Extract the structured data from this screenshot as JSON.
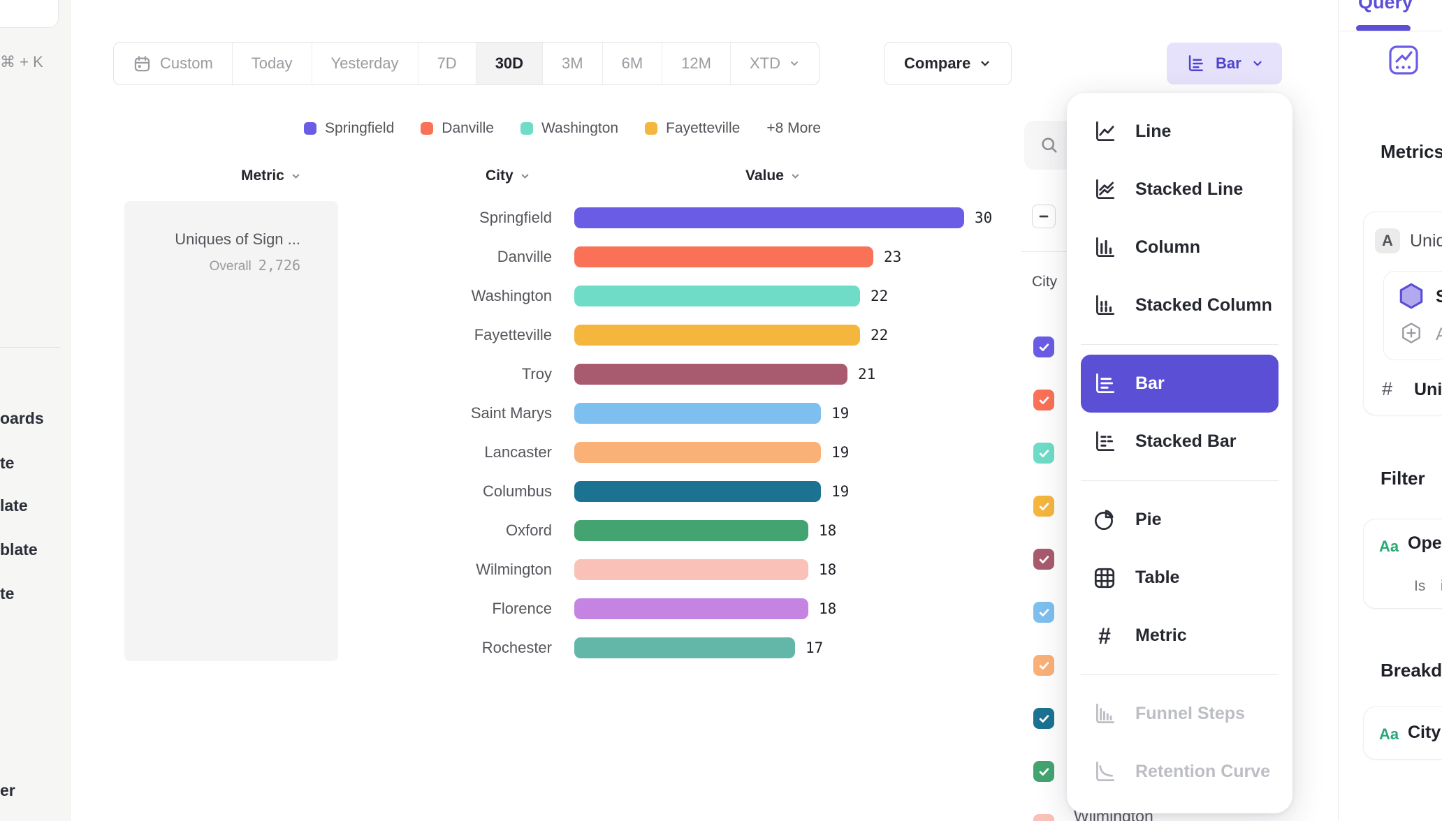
{
  "colors": {
    "accent": "#5b4fd6",
    "accent_light_bg": "#e7e2fb",
    "sidebar_bg": "#f6f6f5",
    "metric_card_bg": "#f4f4f4"
  },
  "sidebar": {
    "shortcut": "⌘ + K",
    "clipped_items": [
      "oards",
      "te",
      "late",
      "blate",
      "te",
      "er"
    ]
  },
  "toolbar": {
    "date_ranges": [
      "Custom",
      "Today",
      "Yesterday",
      "7D",
      "30D",
      "3M",
      "6M",
      "12M",
      "XTD"
    ],
    "selected_range": "30D",
    "compare_label": "Compare",
    "chart_type_button": "Bar"
  },
  "legend": {
    "items": [
      {
        "label": "Springfield",
        "color": "#6b5ce5"
      },
      {
        "label": "Danville",
        "color": "#f97156"
      },
      {
        "label": "Washington",
        "color": "#6fdcc7"
      },
      {
        "label": "Fayetteville",
        "color": "#f4b63d"
      }
    ],
    "more_label": "+8 More"
  },
  "columns": {
    "metric": "Metric",
    "city": "City",
    "value": "Value"
  },
  "metric_card": {
    "title": "Uniques of Sign ...",
    "overall_label": "Overall",
    "overall_value": "2,726"
  },
  "chart_data": {
    "type": "bar",
    "title": "Uniques of Sign ...",
    "overall_total": 2726,
    "categories": [
      "Springfield",
      "Danville",
      "Washington",
      "Fayetteville",
      "Troy",
      "Saint Marys",
      "Lancaster",
      "Columbus",
      "Oxford",
      "Wilmington",
      "Florence",
      "Rochester"
    ],
    "values": [
      30,
      23,
      22,
      22,
      21,
      19,
      19,
      19,
      18,
      18,
      18,
      17
    ],
    "colors": [
      "#6b5ce5",
      "#f97156",
      "#6fdcc7",
      "#f4b63d",
      "#a85a6e",
      "#7dbfef",
      "#f9b178",
      "#1b7291",
      "#43a471",
      "#f9c1b7",
      "#c584e2",
      "#62b7a9"
    ],
    "xlim": [
      0,
      30
    ],
    "orientation": "horizontal",
    "grid": false,
    "value_labels": true
  },
  "city_filter": {
    "column_label": "City",
    "select_all_state": "indeterminate",
    "checkbox_colors": [
      "#6b5ce5",
      "#f97156",
      "#6fdcc7",
      "#f4b63d",
      "#a85a6e",
      "#7dbfef",
      "#f9b178",
      "#1b7291",
      "#43a471",
      "#f9c1b7"
    ],
    "visible_partial_label": "Wilmington"
  },
  "chart_type_menu": {
    "selected": "Bar",
    "items": [
      {
        "label": "Line",
        "icon": "line-chart"
      },
      {
        "label": "Stacked Line",
        "icon": "stacked-line-chart"
      },
      {
        "label": "Column",
        "icon": "column-chart"
      },
      {
        "label": "Stacked Column",
        "icon": "stacked-column-chart",
        "divider_after": true
      },
      {
        "label": "Bar",
        "icon": "bar-chart",
        "selected": true
      },
      {
        "label": "Stacked Bar",
        "icon": "stacked-bar-chart",
        "divider_after": true
      },
      {
        "label": "Pie",
        "icon": "pie-chart"
      },
      {
        "label": "Table",
        "icon": "table-grid"
      },
      {
        "label": "Metric",
        "icon": "hash",
        "divider_after": true
      },
      {
        "label": "Funnel Steps",
        "icon": "funnel-steps",
        "disabled": true
      },
      {
        "label": "Retention Curve",
        "icon": "retention-curve",
        "disabled": true
      }
    ]
  },
  "query_panel": {
    "tab_label": "Query",
    "metrics_heading": "Metrics",
    "event_row": {
      "badge": "A",
      "label": "Uniq"
    },
    "signup_row": {
      "label": "Sig"
    },
    "add_row": {
      "label": "Ad"
    },
    "measured_row": {
      "symbol": "#",
      "label": "Uniqu"
    },
    "filter_heading": "Filter",
    "filter_row": {
      "badge": "Aa",
      "label": "Ope",
      "operator": "Is",
      "value": "i"
    },
    "breakdown_heading": "Breakdo",
    "breakdown_row": {
      "badge": "Aa",
      "label": "City"
    }
  }
}
